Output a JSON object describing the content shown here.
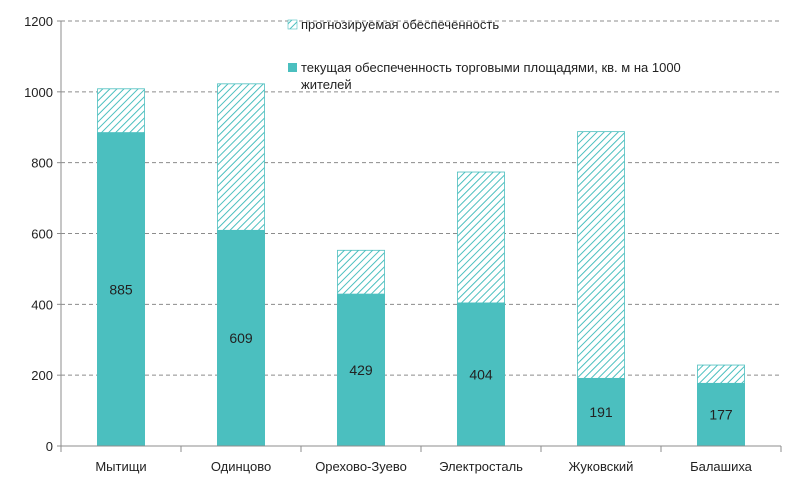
{
  "chart_data": {
    "type": "bar",
    "stacked": true,
    "categories": [
      "Мытищи",
      "Одинцово",
      "Орехово-Зуево",
      "Электросталь",
      "Жуковский",
      "Балашиха"
    ],
    "series": [
      {
        "name": "текущая обеспеченность торговыми площадями, кв. м на 1000 жителей",
        "values": [
          885,
          609,
          429,
          404,
          191,
          177
        ],
        "color": "#4BBFBF",
        "pattern": "solid",
        "data_labels": true
      },
      {
        "name": "прогнозируемая обеспеченность",
        "values": [
          125,
          415,
          125,
          371,
          698,
          53
        ],
        "color": "#4BBFBF",
        "pattern": "diagonal-hatch",
        "data_labels": false
      }
    ],
    "title": "",
    "xlabel": "",
    "ylabel": "",
    "ylim": [
      0,
      1200
    ],
    "yticks": [
      0,
      200,
      400,
      600,
      800,
      1000,
      1200
    ],
    "grid": "horizontal-dashed",
    "legend_position": "top-right"
  },
  "legend": {
    "forecast_label": "прогнозируемая обеспеченность",
    "current_label_line1": "текущая обеспеченность торговыми площадями, кв. м на 1000",
    "current_label_line2": "жителей"
  }
}
